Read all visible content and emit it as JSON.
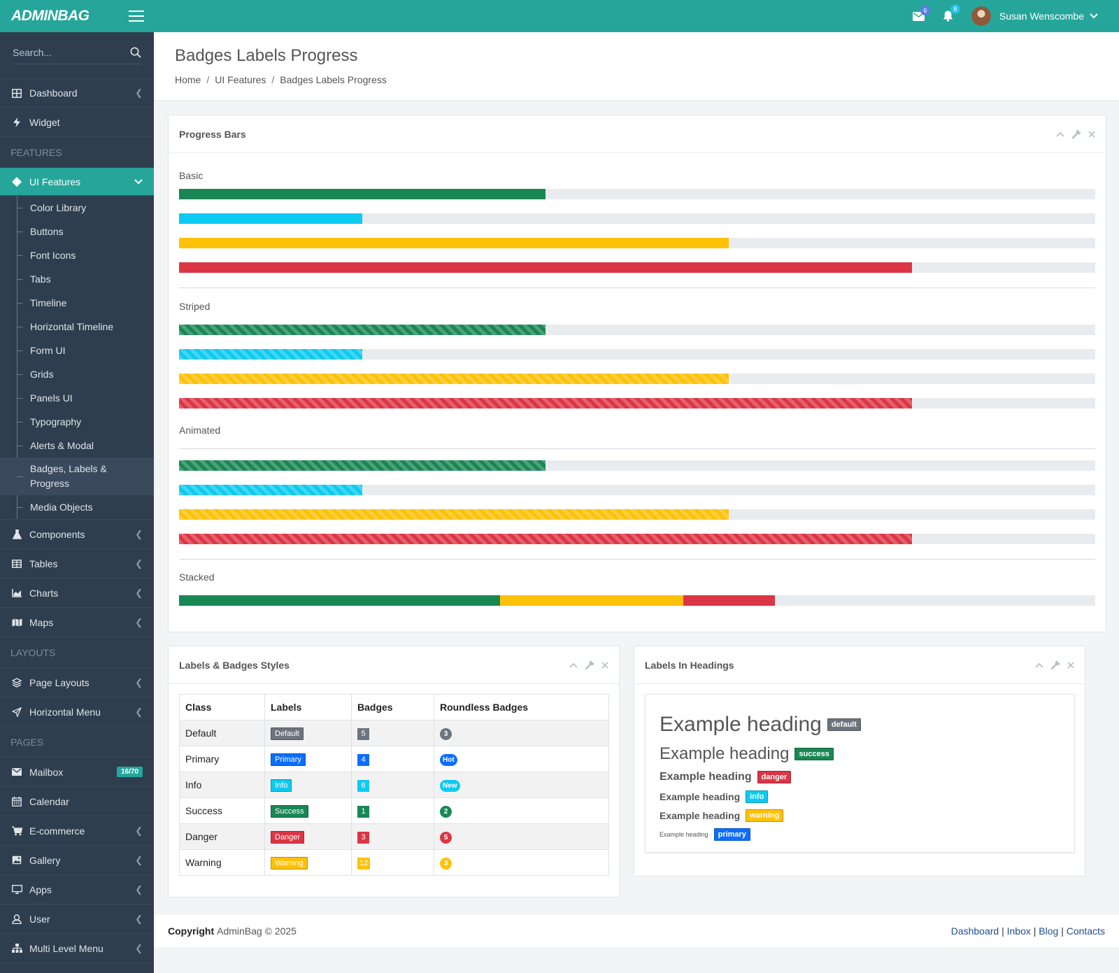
{
  "app": {
    "brand": "ADMINBAG"
  },
  "topbar": {
    "mail_count": "6",
    "bell_count": "8",
    "user_name": "Susan Wenscombe",
    "colors": {
      "bar": "#26a69a",
      "mail_badge": "#5b7be8",
      "bell_badge": "#1ec1e8"
    }
  },
  "sidebar": {
    "search_placeholder": "Search...",
    "items_top": [
      {
        "label": "Dashboard",
        "icon": "grid-icon",
        "arrow": true
      },
      {
        "label": "Widget",
        "icon": "bolt-icon",
        "arrow": false
      }
    ],
    "section_features": "FEATURES",
    "ui_features": {
      "label": "UI Features",
      "icon": "diamond-icon"
    },
    "ui_sub": [
      "Color Library",
      "Buttons",
      "Font Icons",
      "Tabs",
      "Timeline",
      "Horizontal Timeline",
      "Form UI",
      "Grids",
      "Panels UI",
      "Typography",
      "Alerts & Modal",
      "Badges, Labels & Progress",
      "Media Objects"
    ],
    "items_mid": [
      {
        "label": "Components",
        "icon": "flask-icon"
      },
      {
        "label": "Tables",
        "icon": "table-icon"
      },
      {
        "label": "Charts",
        "icon": "chart-icon"
      },
      {
        "label": "Maps",
        "icon": "map-icon"
      }
    ],
    "section_layouts": "LAYOUTS",
    "items_layouts": [
      {
        "label": "Page Layouts",
        "icon": "layers-icon"
      },
      {
        "label": "Horizontal Menu",
        "icon": "send-icon"
      }
    ],
    "section_pages": "PAGES",
    "mailbox": {
      "label": "Mailbox",
      "badge": "16/70"
    },
    "items_pages": [
      {
        "label": "Calendar",
        "icon": "calendar-icon",
        "arrow": false
      },
      {
        "label": "E-commerce",
        "icon": "cart-icon",
        "arrow": true
      },
      {
        "label": "Gallery",
        "icon": "image-icon",
        "arrow": true
      },
      {
        "label": "Apps",
        "icon": "monitor-icon",
        "arrow": true
      },
      {
        "label": "User",
        "icon": "user-icon",
        "arrow": true
      },
      {
        "label": "Multi Level Menu",
        "icon": "sitemap-icon",
        "arrow": true
      }
    ]
  },
  "page": {
    "title": "Badges Labels Progress",
    "breadcrumb": [
      "Home",
      "UI Features",
      "Badges Labels Progress"
    ]
  },
  "progress": {
    "card_title": "Progress Bars",
    "colors": {
      "success": "#198754",
      "info": "#0dcaf0",
      "warning": "#ffc107",
      "danger": "#dc3545",
      "track": "#e9ecef"
    },
    "groups": [
      {
        "label": "Basic",
        "style": "solid",
        "bars": [
          {
            "color": "success",
            "pct": 40
          },
          {
            "color": "info",
            "pct": 20
          },
          {
            "color": "warning",
            "pct": 60
          },
          {
            "color": "danger",
            "pct": 80
          }
        ]
      },
      {
        "label": "Striped",
        "style": "striped",
        "bars": [
          {
            "color": "success",
            "pct": 40
          },
          {
            "color": "info",
            "pct": 20
          },
          {
            "color": "warning",
            "pct": 60
          },
          {
            "color": "danger",
            "pct": 80
          }
        ]
      },
      {
        "label": "Animated",
        "style": "striped",
        "bars": [
          {
            "color": "success",
            "pct": 40
          },
          {
            "color": "info",
            "pct": 20
          },
          {
            "color": "warning",
            "pct": 60
          },
          {
            "color": "danger",
            "pct": 80
          }
        ]
      }
    ],
    "stacked": {
      "label": "Stacked",
      "segments": [
        {
          "color": "success",
          "pct": 35
        },
        {
          "color": "warning",
          "pct": 20
        },
        {
          "color": "danger",
          "pct": 10
        }
      ]
    }
  },
  "labels_badges": {
    "card_title": "Labels & Badges Styles",
    "headers": [
      "Class",
      "Labels",
      "Badges",
      "Roundless Badges"
    ],
    "rows": [
      {
        "cls": "Default",
        "label": "Default",
        "badge": "5",
        "round": "3",
        "color": "#6c757d"
      },
      {
        "cls": "Primary",
        "label": "Primary",
        "badge": "4",
        "round": "Hot",
        "color": "#0d6efd"
      },
      {
        "cls": "Info",
        "label": "Info",
        "badge": "6",
        "round": "New",
        "color": "#0dcaf0"
      },
      {
        "cls": "Success",
        "label": "Success",
        "badge": "1",
        "round": "2",
        "color": "#198754"
      },
      {
        "cls": "Danger",
        "label": "Danger",
        "badge": "3",
        "round": "5",
        "color": "#dc3545"
      },
      {
        "cls": "Warning",
        "label": "Warning",
        "badge": "12",
        "round": "3",
        "color": "#ffc107"
      }
    ]
  },
  "headings": {
    "card_title": "Labels In Headings",
    "items": [
      {
        "text": "Example heading",
        "label": "default",
        "color": "#6c757d"
      },
      {
        "text": "Example heading",
        "label": "success",
        "color": "#198754"
      },
      {
        "text": "Example heading",
        "label": "danger",
        "color": "#dc3545"
      },
      {
        "text": "Example heading",
        "label": "info",
        "color": "#0dcaf0"
      },
      {
        "text": "Example heading",
        "label": "warning",
        "color": "#ffc107"
      },
      {
        "text": "Example heading",
        "label": "primary",
        "color": "#0d6efd"
      }
    ]
  },
  "footer": {
    "copyright_bold": "Copyright",
    "copyright_text": "AdminBag © 2025",
    "links": [
      "Dashboard",
      "Inbox",
      "Blog",
      "Contacts"
    ]
  }
}
